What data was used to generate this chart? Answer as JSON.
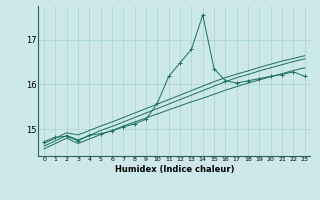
{
  "xlabel": "Humidex (Indice chaleur)",
  "ylabel": "",
  "bg_color": "#cce8e8",
  "line_color": "#1a7060",
  "grid_color": "#aad0d0",
  "xlim": [
    -0.5,
    23.5
  ],
  "ylim": [
    14.4,
    17.75
  ],
  "yticks": [
    15,
    16,
    17
  ],
  "xticks": [
    0,
    1,
    2,
    3,
    4,
    5,
    6,
    7,
    8,
    9,
    10,
    11,
    12,
    13,
    14,
    15,
    16,
    17,
    18,
    19,
    20,
    21,
    22,
    23
  ],
  "series_x": [
    0,
    1,
    2,
    3,
    4,
    5,
    6,
    7,
    8,
    9,
    10,
    11,
    12,
    13,
    14,
    15,
    16,
    17,
    18,
    19,
    20,
    21,
    22,
    23
  ],
  "series_main": [
    14.72,
    14.82,
    14.84,
    14.74,
    14.86,
    14.9,
    14.96,
    15.05,
    15.12,
    15.22,
    15.58,
    16.18,
    16.48,
    16.78,
    17.55,
    16.35,
    16.08,
    16.03,
    16.08,
    16.13,
    16.18,
    16.22,
    16.28,
    16.18
  ],
  "series_line1": [
    14.62,
    14.74,
    14.86,
    14.76,
    14.86,
    14.97,
    15.06,
    15.16,
    15.26,
    15.36,
    15.46,
    15.56,
    15.66,
    15.76,
    15.86,
    15.96,
    16.06,
    16.15,
    16.22,
    16.3,
    16.37,
    16.44,
    16.51,
    16.57
  ],
  "series_line2": [
    14.68,
    14.8,
    14.92,
    14.87,
    14.97,
    15.07,
    15.16,
    15.26,
    15.36,
    15.46,
    15.56,
    15.66,
    15.76,
    15.86,
    15.96,
    16.06,
    16.15,
    16.23,
    16.3,
    16.38,
    16.45,
    16.52,
    16.58,
    16.64
  ],
  "series_line3": [
    14.56,
    14.68,
    14.8,
    14.68,
    14.78,
    14.88,
    14.97,
    15.07,
    15.16,
    15.25,
    15.34,
    15.43,
    15.52,
    15.61,
    15.69,
    15.78,
    15.87,
    15.95,
    16.03,
    16.1,
    16.17,
    16.24,
    16.31,
    16.37
  ]
}
